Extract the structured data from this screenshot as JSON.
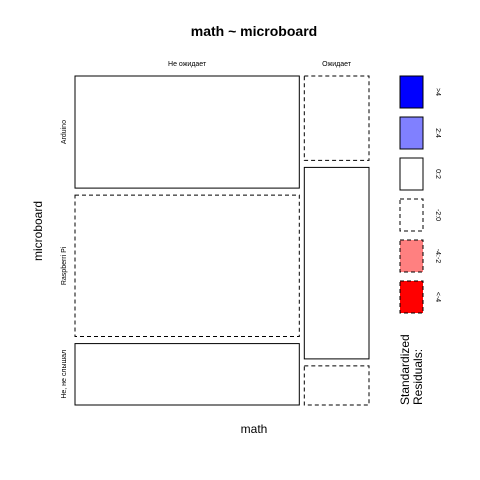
{
  "chart_data": {
    "type": "mosaic",
    "title": "math ~ microboard",
    "xlabel": "math",
    "ylabel": "microboard",
    "x_categories": [
      "Не ожидает",
      "Ожидает"
    ],
    "y_categories": [
      "Arduino",
      "Raspberri Pi",
      "Не, не слышал"
    ],
    "column_proportions": [
      0.776,
      0.224
    ],
    "cells": [
      {
        "x": "Не ожидает",
        "y": "Arduino",
        "proportion": 0.356,
        "residual_class": "0:2"
      },
      {
        "x": "Не ожидает",
        "y": "Raspberri Pi",
        "proportion": 0.449,
        "residual_class": "-2:0"
      },
      {
        "x": "Не ожидает",
        "y": "Не, не слышал",
        "proportion": 0.195,
        "residual_class": "0:2"
      },
      {
        "x": "Ожидает",
        "y": "Arduino",
        "proportion": 0.268,
        "residual_class": "-2:0"
      },
      {
        "x": "Ожидает",
        "y": "Raspberri Pi",
        "proportion": 0.608,
        "residual_class": "0:2"
      },
      {
        "x": "Ожидает",
        "y": "Не, не слышал",
        "proportion": 0.124,
        "residual_class": "-2:0"
      }
    ],
    "legend": {
      "title_lines": [
        "Standardized",
        "Residuals:"
      ],
      "placement": "right",
      "entries": [
        {
          "label": ">4",
          "fill": "#0000ff",
          "dashed": false
        },
        {
          "label": "2:4",
          "fill": "#8080ff",
          "dashed": false
        },
        {
          "label": "0:2",
          "fill": "#ffffff",
          "dashed": false
        },
        {
          "label": "-2:0",
          "fill": "#ffffff",
          "dashed": true
        },
        {
          "label": "-4:-2",
          "fill": "#ff8080",
          "dashed": true
        },
        {
          "label": "<-4",
          "fill": "#ff0000",
          "dashed": true
        }
      ]
    }
  }
}
